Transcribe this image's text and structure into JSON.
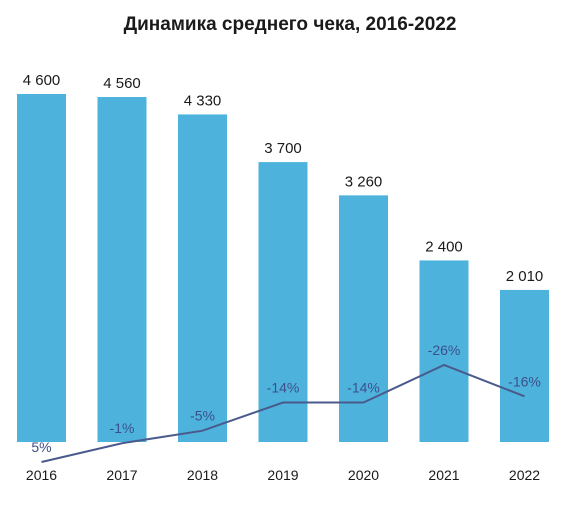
{
  "chart_data": {
    "type": "bar",
    "title": "Динамика среднего чека, 2016-2022",
    "categories": [
      "2016",
      "2017",
      "2018",
      "2019",
      "2020",
      "2021",
      "2022"
    ],
    "series": [
      {
        "values": [
          4600,
          4560,
          4330,
          3700,
          3260,
          2400,
          2010
        ],
        "labels": [
          "4 600",
          "4 560",
          "4 330",
          "3 700",
          "3 260",
          "2 400",
          "2 010"
        ],
        "color": "#4db3dc"
      },
      {
        "type": "line",
        "values": [
          5,
          -1,
          -5,
          -14,
          -14,
          -26,
          -16
        ],
        "labels": [
          "5%",
          "-1%",
          "-5%",
          "-14%",
          "-14%",
          "-26%",
          "-16%"
        ],
        "color": "#4a5a8c"
      }
    ],
    "ylim": [
      0,
      4600
    ],
    "grid": false,
    "legend": "none"
  }
}
